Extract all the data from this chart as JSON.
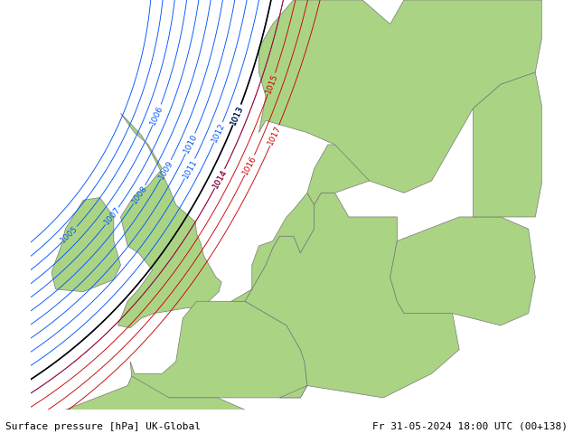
{
  "title_left": "Surface pressure [hPa] UK-Global",
  "title_right": "Fr 31-05-2024 18:00 UTC (00+138)",
  "land_color": "#aad484",
  "sea_color": "#c8c8c8",
  "footer_bg": "#ffffff",
  "blue": "#0055ff",
  "red": "#cc0000",
  "black": "#000000",
  "label_fs": 6.5,
  "footer_fs": 8.0,
  "fig_w": 6.34,
  "fig_h": 4.9,
  "dpi": 100,
  "lon_min": -12.0,
  "lon_max": 25.0,
  "lat_min": 46.5,
  "lat_max": 63.5
}
